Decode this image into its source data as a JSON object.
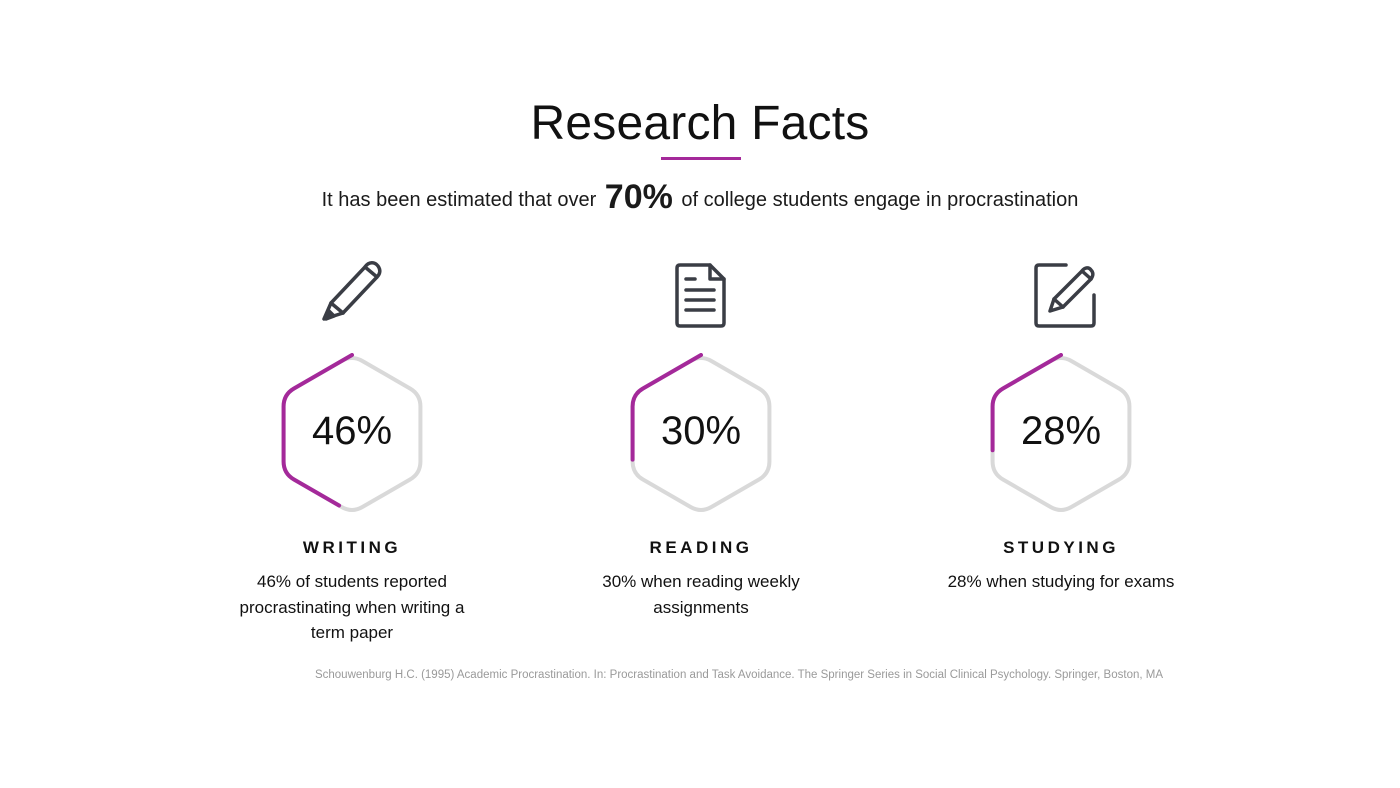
{
  "title": "Research Facts",
  "intro": {
    "before": "It has been estimated that over",
    "highlight": "70%",
    "after": "of college students engage in procrastination"
  },
  "colors": {
    "accent": "#a4299a",
    "track": "#d9d9d9",
    "icon": "#3a3d45"
  },
  "facts": [
    {
      "icon": "pencil-icon",
      "percent_label": "46%",
      "percent": 46,
      "label": "WRITING",
      "description": "46% of students reported procrastinating when writing a term paper"
    },
    {
      "icon": "document-icon",
      "percent_label": "30%",
      "percent": 30,
      "label": "READING",
      "description": "30% when reading weekly assignments"
    },
    {
      "icon": "edit-square-icon",
      "percent_label": "28%",
      "percent": 28,
      "label": "STUDYING",
      "description": "28% when studying for exams"
    }
  ],
  "citation": "Schouwenburg H.C. (1995) Academic Procrastination. In: Procrastination and Task Avoidance. The Springer Series in Social Clinical Psychology. Springer, Boston, MA"
}
